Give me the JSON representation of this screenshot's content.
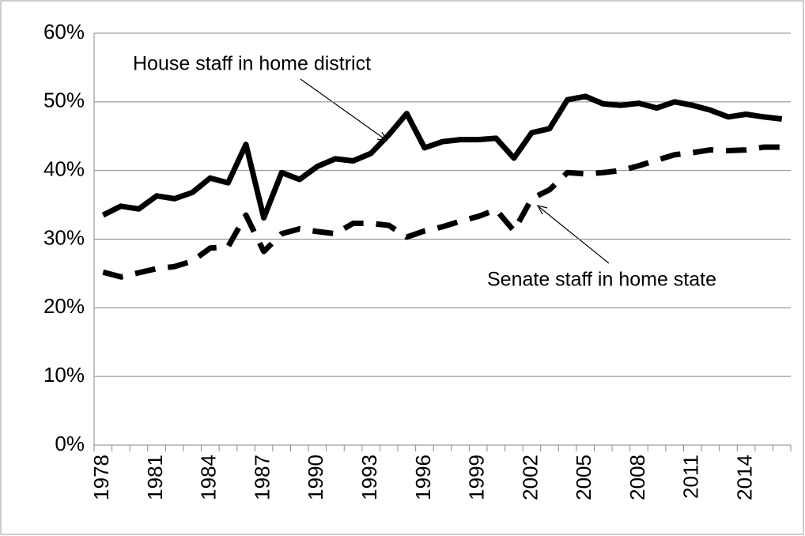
{
  "chart_data": {
    "type": "line",
    "categories": [
      "1978",
      null,
      null,
      "1981",
      null,
      null,
      "1984",
      null,
      null,
      "1987",
      null,
      null,
      "1990",
      null,
      null,
      "1993",
      null,
      null,
      "1996",
      null,
      null,
      "1999",
      null,
      null,
      "2002",
      null,
      null,
      "2005",
      null,
      null,
      "2008",
      null,
      null,
      "2011",
      null,
      null,
      "2014",
      null,
      null
    ],
    "series": [
      {
        "name": "House staff in home district",
        "color": "#000000",
        "style": "solid",
        "values": [
          33.5,
          34.8,
          34.4,
          36.3,
          35.9,
          36.8,
          38.9,
          38.2,
          43.8,
          33.1,
          39.7,
          38.7,
          40.6,
          41.7,
          41.4,
          42.5,
          45.2,
          48.3,
          43.3,
          44.2,
          44.5,
          44.5,
          44.7,
          41.8,
          45.5,
          46.1,
          50.3,
          50.8,
          49.7,
          49.5,
          49.8,
          49.1,
          50.0,
          49.5,
          48.8,
          47.8,
          48.2,
          47.8,
          47.5
        ]
      },
      {
        "name": "Senate staff in home state",
        "color": "#000000",
        "style": "dashed",
        "values": [
          25.2,
          24.5,
          25.1,
          25.7,
          26.0,
          26.8,
          28.7,
          28.9,
          33.5,
          28.2,
          30.8,
          31.5,
          31.1,
          30.8,
          32.3,
          32.3,
          32.0,
          30.3,
          31.2,
          31.8,
          32.6,
          33.3,
          34.3,
          31.2,
          35.9,
          37.2,
          39.7,
          39.5,
          39.7,
          40.0,
          40.7,
          41.5,
          42.3,
          42.6,
          43.0,
          42.9,
          43.0,
          43.4,
          43.4
        ]
      }
    ],
    "ylim": [
      0,
      60
    ],
    "yticks": [
      {
        "value": 0,
        "label": "0%"
      },
      {
        "value": 10,
        "label": "10%"
      },
      {
        "value": 20,
        "label": "20%"
      },
      {
        "value": 30,
        "label": "30%"
      },
      {
        "value": 40,
        "label": "40%"
      },
      {
        "value": 50,
        "label": "50%"
      },
      {
        "value": 60,
        "label": "60%"
      }
    ],
    "grid": true
  }
}
